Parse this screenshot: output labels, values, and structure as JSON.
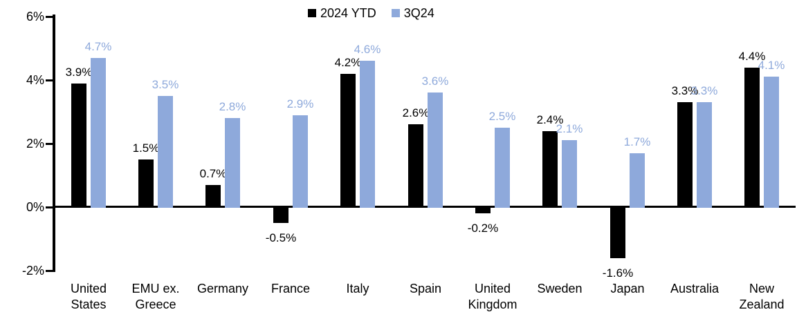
{
  "chart_data": {
    "type": "bar",
    "categories": [
      "United States",
      "EMU ex. Greece",
      "Germany",
      "France",
      "Italy",
      "Spain",
      "United Kingdom",
      "Sweden",
      "Japan",
      "Australia",
      "New Zealand"
    ],
    "series": [
      {
        "name": "2024 YTD",
        "color": "#000000",
        "values": [
          3.9,
          1.5,
          0.7,
          -0.5,
          4.2,
          2.6,
          -0.2,
          2.4,
          -1.6,
          3.3,
          4.4
        ],
        "labels": [
          "3.9%",
          "1.5%",
          "0.7%",
          "-0.5%",
          "4.2%",
          "2.6%",
          "-0.2%",
          "2.4%",
          "-1.6%",
          "3.3%",
          "4.4%"
        ]
      },
      {
        "name": "3Q24",
        "color": "#8EA9DB",
        "values": [
          4.7,
          3.5,
          2.8,
          2.9,
          4.6,
          3.6,
          2.5,
          2.1,
          1.7,
          3.3,
          4.1
        ],
        "labels": [
          "4.7%",
          "3.5%",
          "2.8%",
          "2.9%",
          "4.6%",
          "3.6%",
          "2.5%",
          "2.1%",
          "1.7%",
          "3.3%",
          "4.1%"
        ]
      }
    ],
    "title": "",
    "xlabel": "",
    "ylabel": "",
    "ylim": [
      -2,
      6
    ],
    "yticks": [
      {
        "value": 6,
        "label": "6%"
      },
      {
        "value": 4,
        "label": "4%"
      },
      {
        "value": 2,
        "label": "2%"
      },
      {
        "value": 0,
        "label": "0%"
      },
      {
        "value": -2,
        "label": "-2%"
      }
    ],
    "legend_position": "top-center",
    "grid": "off",
    "axis_color": "#000000",
    "background_color": "#FFFFFF"
  }
}
